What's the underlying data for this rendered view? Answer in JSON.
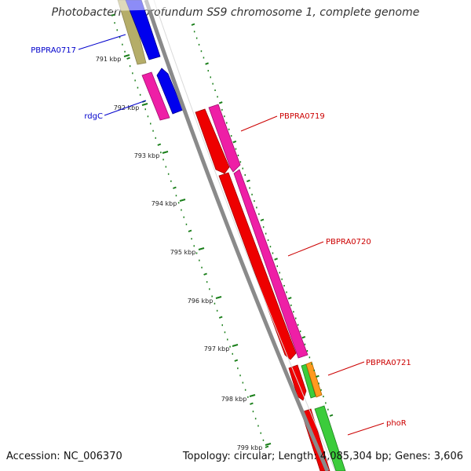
{
  "title": "Photobacterium profundum SS9 chromosome 1, complete genome",
  "footer": {
    "accession": "Accession: NC_006370",
    "summary": "Topology: circular; Length: 4,085,304 bp; Genes: 3,606"
  },
  "colors": {
    "backbone": "#8a8a8a",
    "forward_label": "#cc0000",
    "reverse_label": "#0000cc",
    "tick": "#1a7f1a",
    "leader": "#cc0000"
  },
  "genes": [
    {
      "name": "PBPRA0717",
      "strand": "reverse",
      "color": "blue"
    },
    {
      "name": "rdgC",
      "strand": "reverse",
      "color": "blue"
    },
    {
      "name": "PBPRA0719",
      "strand": "forward",
      "color": "red"
    },
    {
      "name": "PBPRA0720",
      "strand": "forward",
      "color": "red"
    },
    {
      "name": "PBPRA0721",
      "strand": "forward",
      "color": "red"
    },
    {
      "name": "phoR",
      "strand": "forward",
      "color": "red"
    }
  ],
  "ticks": [
    "791 kbp",
    "792 kbp",
    "793 kbp",
    "794 kbp",
    "795 kbp",
    "796 kbp",
    "797 kbp",
    "798 kbp",
    "799 kbp"
  ]
}
